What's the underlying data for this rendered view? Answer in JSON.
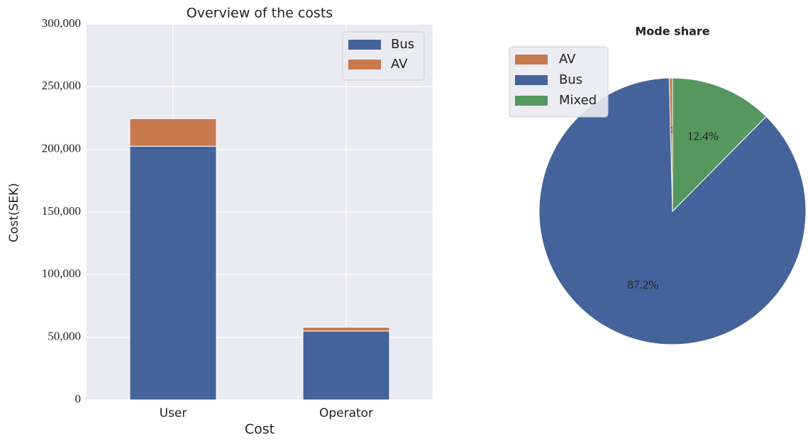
{
  "chart_data": [
    {
      "type": "stacked_bar",
      "title": "Overview of the costs",
      "x_label": "Cost",
      "y_label": "Cost(SEK)",
      "categories": [
        "User",
        "Operator"
      ],
      "series": [
        {
          "name": "Bus",
          "color": "#44639a",
          "values": [
            202500,
            55000
          ]
        },
        {
          "name": "AV",
          "color": "#c87a4e",
          "values": [
            22000,
            3000
          ]
        }
      ],
      "ylim": [
        0,
        300000
      ],
      "yticks": [
        0,
        {
          "value": 50000,
          "label": "50,000"
        },
        {
          "value": 100000,
          "label": "100,000"
        },
        {
          "value": 150000,
          "label": "150,000"
        },
        {
          "value": 200000,
          "label": "200,000"
        },
        {
          "value": 250000,
          "label": "250,000"
        },
        {
          "value": 300000,
          "label": "300,000"
        }
      ],
      "grid": true,
      "legend": "upper right"
    },
    {
      "type": "pie",
      "title": "Mode share",
      "categories": [
        "AV",
        "Bus",
        "Mixed"
      ],
      "values": [
        0.4,
        87.2,
        12.4
      ],
      "value_labels": [
        "0.4%",
        "87.2%",
        "12.4%"
      ],
      "colors": [
        "#c87a4e",
        "#44639a",
        "#55975f"
      ],
      "legend": "upper left"
    }
  ]
}
